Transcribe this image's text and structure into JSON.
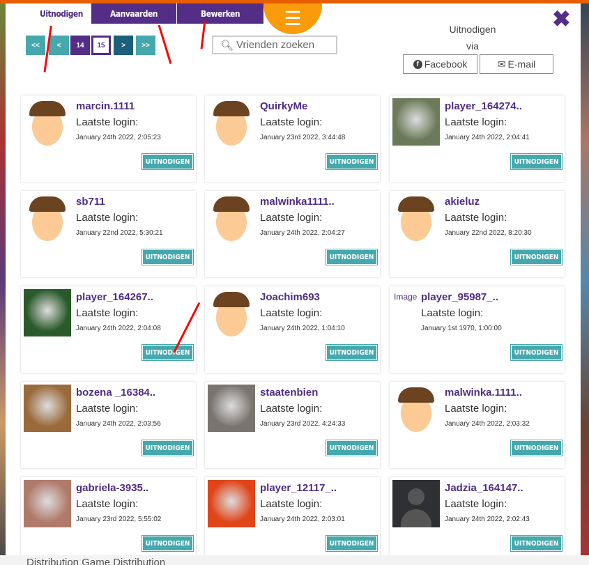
{
  "tabs": {
    "invite": "Uitnodigen",
    "accept": "Aanvaarden",
    "edit": "Bewerken"
  },
  "menu_icon": "hamburger-icon",
  "pagination": {
    "first": "<<",
    "prev": "<",
    "pages": [
      "14",
      "15"
    ],
    "current": "15",
    "next": ">",
    "last": ">>"
  },
  "search": {
    "placeholder": "Vrienden zoeken"
  },
  "invite_via": {
    "line1": "Uitnodigen",
    "line2": "via",
    "facebook": "Facebook",
    "email": "E-mail"
  },
  "colors": {
    "brand": "#542d86",
    "accent": "#fb9a0a",
    "button": "#45a8ad"
  },
  "card_login_label": "Laatste login:",
  "card_button": "UITNODIGEN",
  "friends": [
    {
      "name": "marcin.1111",
      "date": "January 24th 2022, 2:05:23",
      "avatar": "default"
    },
    {
      "name": "QuirkyMe",
      "date": "January 23rd 2022, 3:44:48",
      "avatar": "default"
    },
    {
      "name": "player_164274..",
      "date": "January 24th 2022, 2:04:41",
      "avatar": "photo",
      "color": "#6b7a5a"
    },
    {
      "name": "sb711",
      "date": "January 22nd 2022, 5:30:21",
      "avatar": "default"
    },
    {
      "name": "malwinka1111..",
      "date": "January 24th 2022, 2:04:27",
      "avatar": "default"
    },
    {
      "name": "akieluz",
      "date": "January 22nd 2022, 8:20:30",
      "avatar": "default"
    },
    {
      "name": "player_164267..",
      "date": "January 24th 2022, 2:04:08",
      "avatar": "photo",
      "color": "#2a5a2a"
    },
    {
      "name": "Joachim693",
      "date": "January 24th 2022, 1:04:10",
      "avatar": "default"
    },
    {
      "name": "player_95987_..",
      "date": "January 1st 1970, 1:00:00",
      "avatar": "broken",
      "alt": "Image"
    },
    {
      "name": "bozena _16384..",
      "date": "January 24th 2022, 2:03:56",
      "avatar": "photo",
      "color": "#9a6a3a"
    },
    {
      "name": "staatenbien",
      "date": "January 23rd 2022, 4:24:33",
      "avatar": "photo",
      "color": "#7a7470"
    },
    {
      "name": "malwinka.1111..",
      "date": "January 24th 2022, 2:03:32",
      "avatar": "default"
    },
    {
      "name": "gabriela-3935..",
      "date": "January 23rd 2022, 5:55:02",
      "avatar": "photo",
      "color": "#b07a6a"
    },
    {
      "name": "player_12117_..",
      "date": "January 24th 2022, 2:03:01",
      "avatar": "photo",
      "color": "#e0451a"
    },
    {
      "name": "Jadzia_164147..",
      "date": "January 24th 2022, 2:02:43",
      "avatar": "silhouette"
    }
  ],
  "footer": "Distribution Game Distribution"
}
